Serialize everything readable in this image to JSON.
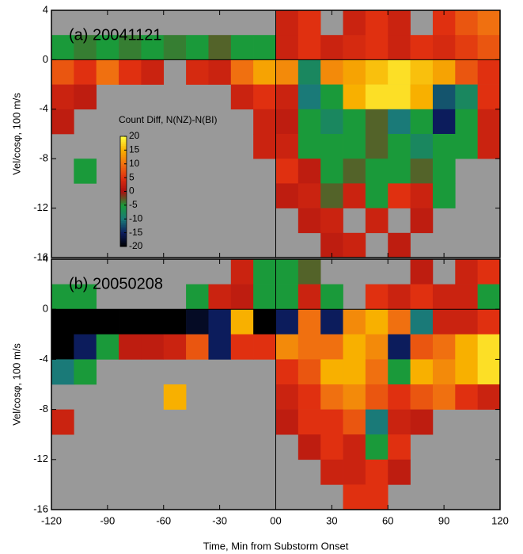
{
  "chart_data": [
    {
      "type": "heatmap",
      "title": "(a)  20041121",
      "ylabel": "Vel/cosφ, 100 m/s",
      "xlim": [
        -120,
        120
      ],
      "ylim": [
        -16,
        4
      ],
      "xticks": [
        -120,
        -90,
        -60,
        -30,
        0,
        30,
        60,
        90,
        120
      ],
      "yticks": [
        4,
        0,
        -4,
        -8,
        -12,
        -16
      ],
      "x_bins": [
        -120,
        -108,
        -96,
        -84,
        -72,
        -60,
        -48,
        -36,
        -24,
        -12,
        0,
        12,
        24,
        36,
        48,
        60,
        72,
        84,
        96,
        108,
        120
      ],
      "y_bins": [
        4,
        2,
        0,
        -2,
        -4,
        -6,
        -8,
        -10,
        -12,
        -14,
        -16
      ],
      "zlim": [
        -20,
        20
      ],
      "colorscale": [
        "#000000",
        "#0c1c5c",
        "#1a7a78",
        "#1a9a3a",
        "#a81010",
        "#e03010",
        "#f07010",
        "#f8b000",
        "#ffff40"
      ],
      "background": "#999999",
      "colorbar": {
        "label": "Count Diff, N(NZ)-N(BI)",
        "zticks": [
          20,
          15,
          10,
          5,
          0,
          -5,
          -10,
          -15,
          -20
        ]
      },
      "z": [
        [
          null,
          null,
          null,
          null,
          null,
          null,
          null,
          null,
          null,
          null,
          3,
          5,
          null,
          3,
          5,
          3,
          null,
          5,
          8,
          10
        ],
        [
          -5,
          -4,
          -5,
          -4,
          -5,
          -4,
          -5,
          -3,
          -5,
          -5,
          3,
          5,
          3,
          4,
          5,
          3,
          5,
          4,
          6,
          8
        ],
        [
          8,
          5,
          10,
          5,
          3,
          null,
          4,
          3,
          10,
          14,
          12,
          -8,
          12,
          14,
          16,
          18,
          16,
          14,
          8,
          5
        ],
        [
          3,
          2,
          null,
          null,
          null,
          null,
          null,
          null,
          3,
          5,
          3,
          -10,
          -5,
          15,
          18,
          18,
          15,
          -12,
          -8,
          5
        ],
        [
          2,
          null,
          null,
          null,
          null,
          null,
          null,
          null,
          null,
          3,
          2,
          -5,
          -8,
          -5,
          -3,
          -10,
          -5,
          -15,
          -5,
          3
        ],
        [
          null,
          null,
          null,
          null,
          null,
          null,
          null,
          null,
          null,
          3,
          3,
          -5,
          -5,
          -5,
          -3,
          -5,
          -8,
          -5,
          -5,
          3
        ],
        [
          null,
          -5,
          null,
          null,
          null,
          null,
          null,
          null,
          null,
          null,
          5,
          2,
          -5,
          -3,
          -5,
          -5,
          -3,
          -5,
          null,
          null
        ],
        [
          null,
          null,
          null,
          null,
          null,
          null,
          null,
          null,
          null,
          null,
          2,
          3,
          -3,
          3,
          -5,
          5,
          3,
          -5,
          null,
          null
        ],
        [
          null,
          null,
          null,
          null,
          null,
          null,
          null,
          null,
          null,
          null,
          null,
          2,
          3,
          null,
          3,
          null,
          2,
          null,
          null,
          null
        ],
        [
          null,
          null,
          null,
          null,
          null,
          null,
          null,
          null,
          null,
          null,
          null,
          null,
          2,
          3,
          null,
          2,
          null,
          null,
          null,
          null
        ]
      ]
    },
    {
      "type": "heatmap",
      "title": "(b)  20050208",
      "ylabel": "Vel/cosφ, 100 m/s",
      "xlabel": "Time, Min from Substorm Onset",
      "xlim": [
        -120,
        120
      ],
      "ylim": [
        -16,
        4
      ],
      "xticks": [
        -120,
        -90,
        -60,
        -30,
        {
          "value": 0,
          "label": "00"
        },
        30,
        60,
        90,
        120
      ],
      "yticks": [
        4,
        0,
        -4,
        -8,
        -12,
        -16
      ],
      "x_bins": [
        -120,
        -108,
        -96,
        -84,
        -72,
        -60,
        -48,
        -36,
        -24,
        -12,
        0,
        12,
        24,
        36,
        48,
        60,
        72,
        84,
        96,
        108,
        120
      ],
      "y_bins": [
        4,
        2,
        0,
        -2,
        -4,
        -6,
        -8,
        -10,
        -12,
        -14,
        -16
      ],
      "zlim": [
        -20,
        20
      ],
      "colorscale": [
        "#000000",
        "#0c1c5c",
        "#1a7a78",
        "#1a9a3a",
        "#a81010",
        "#e03010",
        "#f07010",
        "#f8b000",
        "#ffff40"
      ],
      "background": "#999999",
      "z": [
        [
          null,
          null,
          null,
          null,
          null,
          null,
          null,
          null,
          3,
          -5,
          -5,
          -3,
          null,
          null,
          null,
          null,
          2,
          null,
          3,
          5
        ],
        [
          -5,
          -5,
          null,
          null,
          null,
          null,
          -5,
          3,
          2,
          -5,
          -5,
          3,
          -5,
          null,
          5,
          3,
          5,
          3,
          3,
          -5
        ],
        [
          -20,
          -20,
          -20,
          -20,
          -20,
          -20,
          -18,
          -15,
          15,
          -20,
          -15,
          10,
          -15,
          12,
          15,
          10,
          -10,
          3,
          3,
          5
        ],
        [
          -20,
          -15,
          -5,
          2,
          2,
          3,
          8,
          -15,
          5,
          5,
          12,
          10,
          10,
          15,
          12,
          -15,
          8,
          10,
          15,
          18
        ],
        [
          -10,
          -5,
          null,
          null,
          null,
          null,
          null,
          null,
          null,
          null,
          5,
          8,
          15,
          15,
          10,
          -5,
          15,
          12,
          15,
          18
        ],
        [
          null,
          null,
          null,
          null,
          null,
          15,
          null,
          null,
          null,
          null,
          3,
          5,
          10,
          12,
          8,
          5,
          8,
          10,
          5,
          3
        ],
        [
          3,
          null,
          null,
          null,
          null,
          null,
          null,
          null,
          null,
          null,
          2,
          5,
          5,
          8,
          -10,
          3,
          2,
          null,
          null,
          null
        ],
        [
          null,
          null,
          null,
          null,
          null,
          null,
          null,
          null,
          null,
          null,
          null,
          2,
          5,
          3,
          -5,
          5,
          null,
          null,
          null,
          null
        ],
        [
          null,
          null,
          null,
          null,
          null,
          null,
          null,
          null,
          null,
          null,
          null,
          null,
          3,
          3,
          5,
          2,
          null,
          null,
          null,
          null
        ],
        [
          null,
          null,
          null,
          null,
          null,
          null,
          null,
          null,
          null,
          null,
          null,
          null,
          null,
          5,
          5,
          null,
          null,
          null,
          null,
          null
        ]
      ]
    }
  ]
}
